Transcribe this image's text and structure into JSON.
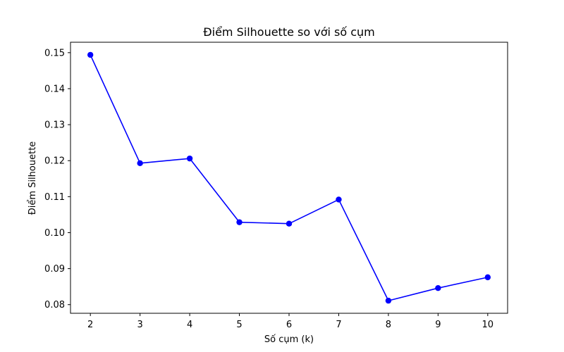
{
  "chart_data": {
    "type": "line",
    "title": "Điểm Silhouette so với số cụm",
    "xlabel": "Số cụm (k)",
    "ylabel": "Điểm Silhouette",
    "x": [
      2,
      3,
      4,
      5,
      6,
      7,
      8,
      9,
      10
    ],
    "series": [
      {
        "values": [
          0.1494,
          0.1193,
          0.1206,
          0.1029,
          0.1025,
          0.1092,
          0.0811,
          0.0846,
          0.0876
        ],
        "color": "#0000ff",
        "marker": "circle"
      }
    ],
    "xticks": [
      "2",
      "3",
      "4",
      "5",
      "6",
      "7",
      "8",
      "9",
      "10"
    ],
    "yticks": [
      "0.08",
      "0.09",
      "0.10",
      "0.11",
      "0.12",
      "0.13",
      "0.14",
      "0.15"
    ],
    "ytick_values": [
      0.08,
      0.09,
      0.1,
      0.11,
      0.12,
      0.13,
      0.14,
      0.15
    ],
    "xlim": [
      1.6,
      10.4
    ],
    "ylim": [
      0.0776,
      0.1529
    ],
    "grid": false,
    "legend": false
  }
}
